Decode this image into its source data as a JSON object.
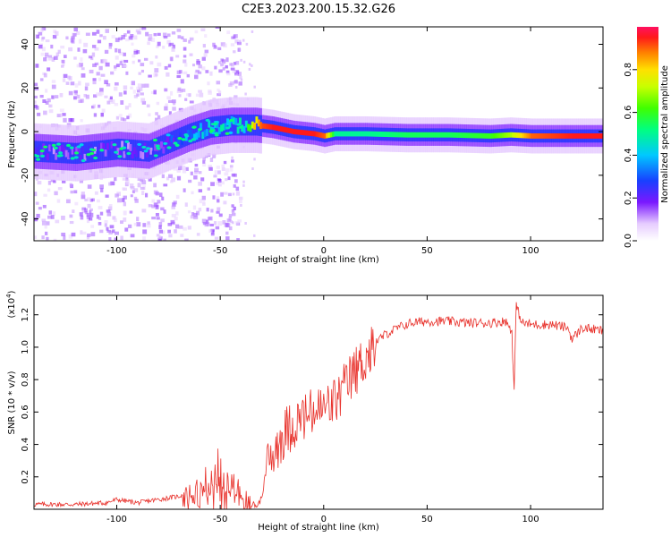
{
  "figure": {
    "title": "C2E3.2023.200.15.32.G26"
  },
  "chart_data": [
    {
      "type": "heatmap",
      "xlabel": "Height of straight line (km)",
      "ylabel": "Frequency (Hz)",
      "xlim": [
        -140,
        135
      ],
      "ylim": [
        -50,
        48
      ],
      "xticks": [
        -100,
        -50,
        0,
        50,
        100
      ],
      "yticks": [
        -40,
        -20,
        0,
        20,
        40
      ],
      "colorbar": {
        "label": "Normalized spectral amplitude",
        "range": [
          0,
          1
        ],
        "ticks": [
          "0.0",
          "0.2",
          "0.4",
          "0.6",
          "0.8"
        ]
      },
      "ridge": {
        "x": [
          -140,
          -120,
          -100,
          -85,
          -75,
          -65,
          -55,
          -45,
          -38,
          -33,
          -25,
          -15,
          -5,
          0,
          5,
          20,
          40,
          60,
          80,
          90,
          100,
          120,
          135
        ],
        "center_freq_hz": [
          -9,
          -10,
          -8,
          -9,
          -5,
          -1,
          2,
          3,
          3,
          3,
          2,
          0,
          -1,
          -2,
          -1,
          -1,
          -1.5,
          -1.5,
          -2,
          -1.5,
          -2,
          -2,
          -2
        ],
        "peak_amplitude": [
          0.25,
          0.25,
          0.25,
          0.25,
          0.3,
          0.45,
          0.5,
          0.5,
          0.55,
          0.9,
          0.95,
          0.95,
          0.95,
          0.9,
          0.5,
          0.5,
          0.55,
          0.55,
          0.6,
          0.7,
          0.9,
          0.95,
          0.95
        ]
      }
    },
    {
      "type": "line",
      "xlabel": "Height of straight line (km)",
      "ylabel": "SNR (10 * v/v)",
      "y_scale_label": "(x10",
      "y_scale_exp": "4",
      "y_scale_close": ")",
      "xlim": [
        -140,
        135
      ],
      "ylim": [
        0,
        1.32
      ],
      "xticks": [
        -100,
        -50,
        0,
        50,
        100
      ],
      "yticks": [
        "0.2",
        "0.4",
        "0.6",
        "0.8",
        "1.0",
        "1.2"
      ],
      "color": "#e8302a",
      "series": [
        {
          "x": [
            -140,
            -120,
            -105,
            -100,
            -90,
            -80,
            -70,
            -62,
            -56,
            -52,
            -48,
            -44,
            -40,
            -36,
            -32,
            -30,
            -27,
            -23,
            -18,
            -12,
            -6,
            0,
            6,
            12,
            18,
            24,
            30,
            36,
            42,
            50,
            60,
            70,
            80,
            88,
            91,
            92,
            93,
            94,
            96,
            100,
            110,
            118,
            120,
            125,
            135
          ],
          "y": [
            0.03,
            0.03,
            0.04,
            0.06,
            0.04,
            0.06,
            0.08,
            0.12,
            0.19,
            0.28,
            0.25,
            0.22,
            0.09,
            0.04,
            0.02,
            0.07,
            0.3,
            0.42,
            0.52,
            0.58,
            0.62,
            0.65,
            0.7,
            0.82,
            0.93,
            1.02,
            1.08,
            1.12,
            1.15,
            1.16,
            1.16,
            1.15,
            1.15,
            1.16,
            1.1,
            0.7,
            1.26,
            1.22,
            1.15,
            1.14,
            1.14,
            1.12,
            1.05,
            1.12,
            1.1
          ]
        }
      ]
    }
  ]
}
